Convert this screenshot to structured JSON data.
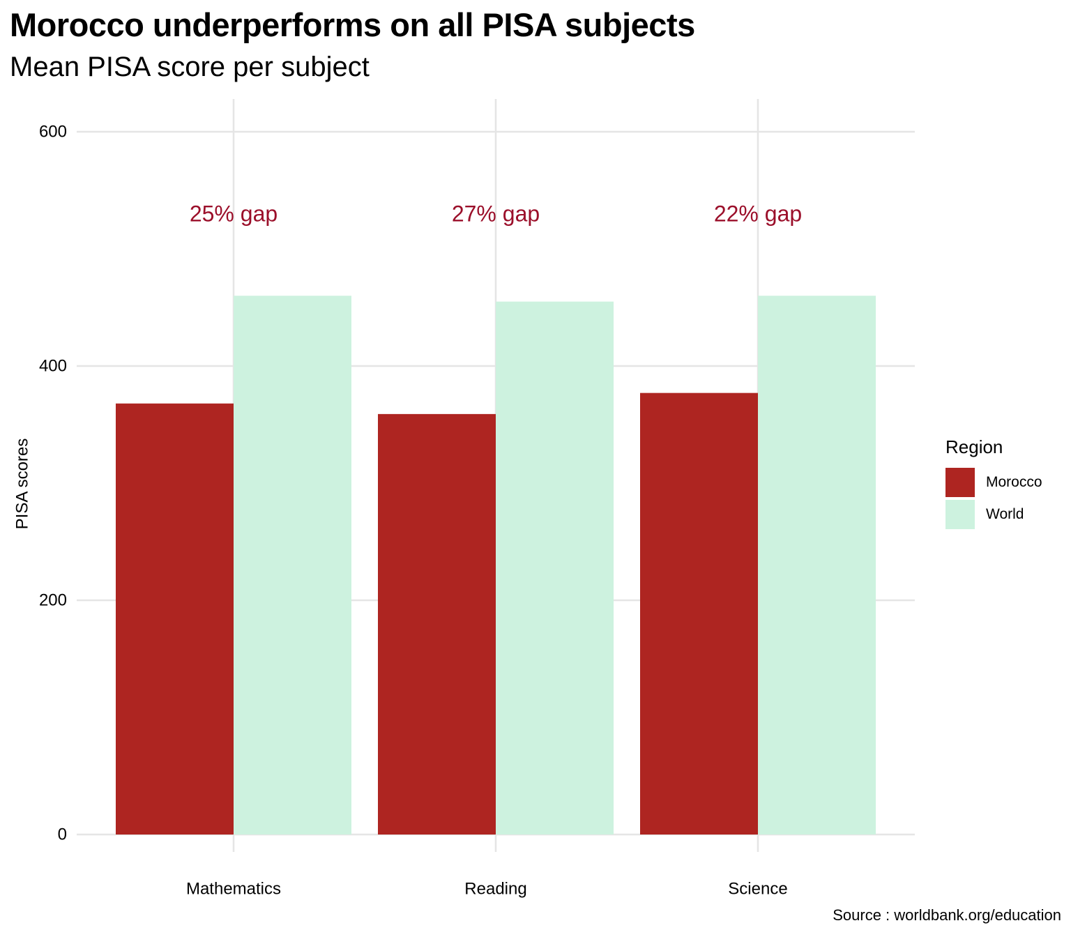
{
  "title": "Morocco underperforms on all PISA subjects",
  "subtitle": "Mean PISA score per subject",
  "caption": "Source : worldbank.org/education",
  "colors": {
    "morocco": "#ae2521",
    "world": "#cdf2df",
    "gap_label": "#9b0f2a",
    "grid": "#e5e5e5"
  },
  "chart_data": {
    "type": "bar",
    "title": "Morocco underperforms on all PISA subjects",
    "subtitle": "Mean PISA score per subject",
    "xlabel": "",
    "ylabel": "PISA scores",
    "categories": [
      "Mathematics",
      "Reading",
      "Science"
    ],
    "series": [
      {
        "name": "Morocco",
        "values": [
          368,
          359,
          377
        ]
      },
      {
        "name": "World",
        "values": [
          460,
          455,
          460
        ]
      }
    ],
    "annotations": [
      "25% gap",
      "27% gap",
      "22% gap"
    ],
    "annotation_y": 530,
    "ylim": [
      -30,
      628
    ],
    "yticks": [
      0,
      200,
      400,
      600
    ],
    "grid": true,
    "legend": {
      "title": "Region",
      "position": "right",
      "entries": [
        "Morocco",
        "World"
      ]
    },
    "caption": "Source : worldbank.org/education"
  }
}
